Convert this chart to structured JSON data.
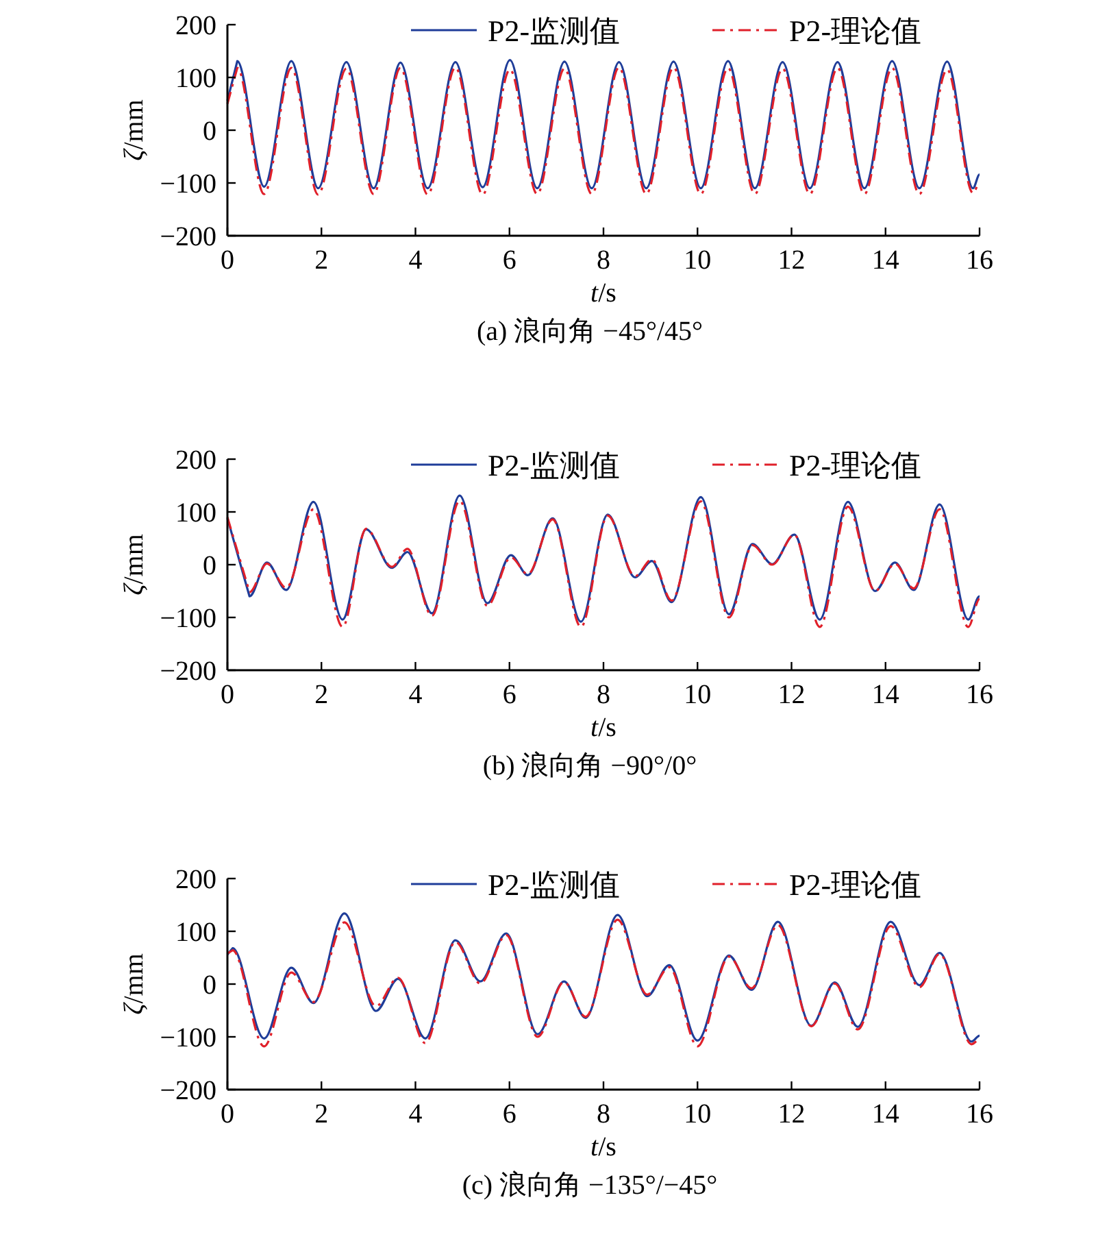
{
  "chart_data": [
    {
      "type": "line",
      "title": "(a) 浪向角 −45°/45°",
      "xlabel": "t/s",
      "ylabel": "ζ/mm",
      "xlim": [
        0,
        16
      ],
      "ylim": [
        -200,
        200
      ],
      "xticks": [
        0,
        2,
        4,
        6,
        8,
        10,
        12,
        14,
        16
      ],
      "yticks": [
        -200,
        -100,
        0,
        100,
        200
      ],
      "legend": "top right",
      "grid": false,
      "series": [
        {
          "name": "P2-监测值",
          "color": "#1f3d99",
          "line_style": "solid",
          "x": [
            0,
            0.21,
            0.78,
            1.36,
            1.93,
            2.53,
            3.11,
            3.68,
            4.26,
            4.85,
            5.43,
            6.01,
            6.59,
            7.17,
            7.75,
            8.33,
            8.91,
            9.49,
            10.07,
            10.65,
            11.22,
            11.81,
            12.39,
            12.98,
            13.55,
            14.14,
            14.72,
            15.31,
            15.86,
            16
          ],
          "values": [
            56,
            131,
            -107,
            131,
            -110,
            129,
            -110,
            128,
            -110,
            129,
            -108,
            133,
            -110,
            130,
            -110,
            129,
            -110,
            130,
            -110,
            131,
            -110,
            129,
            -110,
            129,
            -110,
            131,
            -110,
            130,
            -110,
            -84
          ]
        },
        {
          "name": "P2-理论值",
          "color": "#e0202a",
          "line_style": "dashdot",
          "x": [
            0,
            0.21,
            0.78,
            1.36,
            1.93,
            2.53,
            3.11,
            3.68,
            4.26,
            4.85,
            5.43,
            6.01,
            6.59,
            7.17,
            7.75,
            8.33,
            8.91,
            9.49,
            10.07,
            10.65,
            11.22,
            11.81,
            12.39,
            12.98,
            13.55,
            14.14,
            14.72,
            15.31,
            15.86,
            16
          ],
          "values": [
            50,
            118,
            -121,
            118,
            -122,
            117,
            -121,
            118,
            -122,
            119,
            -122,
            115,
            -121,
            117,
            -121,
            119,
            -121,
            119,
            -121,
            118,
            -121,
            117,
            -121,
            118,
            -121,
            118,
            -121,
            115,
            -119,
            -100
          ]
        }
      ]
    },
    {
      "type": "line",
      "title": "(b) 浪向角 −90°/0°",
      "xlabel": "t/s",
      "ylabel": "ζ/mm",
      "xlim": [
        0,
        16
      ],
      "ylim": [
        -200,
        200
      ],
      "xticks": [
        0,
        2,
        4,
        6,
        8,
        10,
        12,
        14,
        16
      ],
      "yticks": [
        -200,
        -100,
        0,
        100,
        200
      ],
      "legend": "top right",
      "grid": false,
      "series": [
        {
          "name": "P2-监测值",
          "color": "#1f3d99",
          "line_style": "solid",
          "x": [
            0,
            0.47,
            0.84,
            1.25,
            1.83,
            2.45,
            2.95,
            3.5,
            3.83,
            4.35,
            4.94,
            5.53,
            6.03,
            6.39,
            6.92,
            7.52,
            8.09,
            8.67,
            9.03,
            9.45,
            10.07,
            10.67,
            11.17,
            11.59,
            12.06,
            12.6,
            13.2,
            13.78,
            14.2,
            14.6,
            15.15,
            15.76,
            16
          ],
          "values": [
            88,
            -60,
            4,
            -48,
            119,
            -104,
            67,
            -6,
            24,
            -92,
            131,
            -73,
            18,
            -20,
            88,
            -108,
            95,
            -24,
            7,
            -71,
            128,
            -94,
            39,
            1,
            57,
            -104,
            119,
            -50,
            4,
            -48,
            114,
            -104,
            -60
          ]
        },
        {
          "name": "P2-理论值",
          "color": "#e0202a",
          "line_style": "dashdot",
          "x": [
            0,
            0.47,
            0.84,
            1.25,
            1.83,
            2.45,
            2.95,
            3.5,
            3.83,
            4.35,
            4.94,
            5.53,
            6.03,
            6.39,
            6.92,
            7.52,
            8.09,
            8.67,
            9.03,
            9.45,
            10.07,
            10.67,
            11.17,
            11.59,
            12.06,
            12.6,
            13.2,
            13.78,
            14.2,
            14.6,
            15.15,
            15.76,
            16
          ],
          "values": [
            90,
            -52,
            2,
            -44,
            105,
            -118,
            68,
            -4,
            30,
            -97,
            121,
            -78,
            14,
            -18,
            86,
            -118,
            93,
            -22,
            10,
            -68,
            120,
            -100,
            37,
            0,
            57,
            -118,
            110,
            -50,
            2,
            -45,
            105,
            -118,
            -65
          ]
        }
      ]
    },
    {
      "type": "line",
      "title": "(c) 浪向角 −135°/−45°",
      "xlabel": "t/s",
      "ylabel": "ζ/mm",
      "xlim": [
        0,
        16
      ],
      "ylim": [
        -200,
        200
      ],
      "xticks": [
        0,
        2,
        4,
        6,
        8,
        10,
        12,
        14,
        16
      ],
      "yticks": [
        -200,
        -100,
        0,
        100,
        200
      ],
      "legend": "top right",
      "grid": false,
      "series": [
        {
          "name": "P2-监测值",
          "color": "#1f3d99",
          "line_style": "solid",
          "x": [
            0,
            0.11,
            0.78,
            1.36,
            1.83,
            2.49,
            3.16,
            3.63,
            4.21,
            4.85,
            5.38,
            5.93,
            6.6,
            7.16,
            7.62,
            8.3,
            8.93,
            9.4,
            10.0,
            10.67,
            11.15,
            11.71,
            12.42,
            12.92,
            13.41,
            14.11,
            14.72,
            15.15,
            15.83,
            16
          ],
          "values": [
            56,
            68,
            -103,
            31,
            -36,
            134,
            -51,
            10,
            -103,
            83,
            5,
            96,
            -95,
            5,
            -64,
            131,
            -23,
            36,
            -107,
            54,
            -11,
            118,
            -79,
            3,
            -81,
            118,
            -2,
            59,
            -109,
            -98
          ]
        },
        {
          "name": "P2-理论值",
          "color": "#e0202a",
          "line_style": "dashdot",
          "x": [
            0,
            0.11,
            0.78,
            1.36,
            1.83,
            2.49,
            3.16,
            3.63,
            4.21,
            4.85,
            5.38,
            5.93,
            6.6,
            7.16,
            7.62,
            8.3,
            8.93,
            9.4,
            10.0,
            10.67,
            11.15,
            11.71,
            12.42,
            12.92,
            13.41,
            14.11,
            14.72,
            15.15,
            15.83,
            16
          ],
          "values": [
            58,
            64,
            -118,
            22,
            -34,
            117,
            -42,
            12,
            -112,
            80,
            1,
            93,
            -100,
            4,
            -62,
            122,
            -20,
            32,
            -118,
            52,
            -8,
            112,
            -80,
            1,
            -86,
            110,
            -6,
            57,
            -114,
            -105
          ]
        }
      ]
    }
  ]
}
